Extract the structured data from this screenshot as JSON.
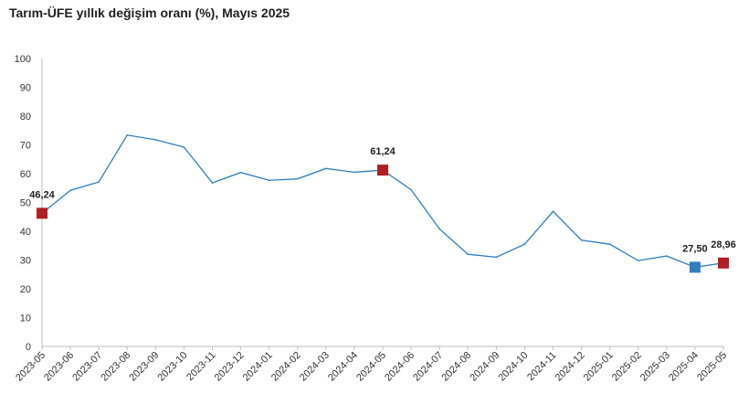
{
  "chart_data": {
    "type": "line",
    "title": "Tarım-ÜFE yıllık değişim oranı (%), Mayıs 2025",
    "xlabel": "",
    "ylabel": "",
    "ylim": [
      0,
      100
    ],
    "yticks": [
      0,
      10,
      20,
      30,
      40,
      50,
      60,
      70,
      80,
      90,
      100
    ],
    "grid": false,
    "legend": "none",
    "categories": [
      "2023-05",
      "2023-06",
      "2023-07",
      "2023-08",
      "2023-09",
      "2023-10",
      "2023-11",
      "2023-12",
      "2024-01",
      "2024-02",
      "2024-03",
      "2024-04",
      "2024-05",
      "2024-06",
      "2024-07",
      "2024-08",
      "2024-09",
      "2024-10",
      "2024-11",
      "2024-12",
      "2025-01",
      "2025-02",
      "2025-03",
      "2025-04",
      "2025-05"
    ],
    "series": [
      {
        "values": [
          46.24,
          54.2,
          57.1,
          73.4,
          71.8,
          69.2,
          56.8,
          60.4,
          57.7,
          58.2,
          61.8,
          60.5,
          61.24,
          54.4,
          40.8,
          32.0,
          31.0,
          35.5,
          46.9,
          36.9,
          35.5,
          29.8,
          31.4,
          27.5,
          28.96
        ],
        "color": "#2e7ebf"
      }
    ],
    "highlights": [
      {
        "index": 0,
        "label": "46,24",
        "color": "#b01f24"
      },
      {
        "index": 12,
        "label": "61,24",
        "color": "#b01f24"
      },
      {
        "index": 23,
        "label": "27,50",
        "color": "#2e7ebf"
      },
      {
        "index": 24,
        "label": "28,96",
        "color": "#b01f24"
      }
    ]
  }
}
